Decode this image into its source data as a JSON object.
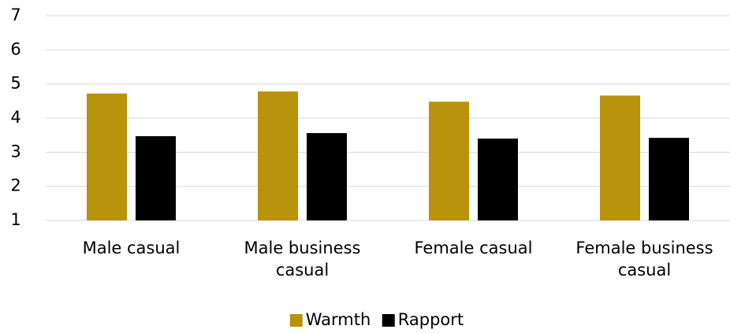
{
  "chart_data": {
    "type": "bar",
    "categories": [
      "Male casual",
      "Male business casual",
      "Female casual",
      "Female business casual"
    ],
    "series": [
      {
        "name": "Warmth",
        "color": "#b8930b",
        "values": [
          4.72,
          4.78,
          4.48,
          4.66
        ]
      },
      {
        "name": "Rapport",
        "color": "#000000",
        "values": [
          3.47,
          3.56,
          3.4,
          3.42
        ]
      }
    ],
    "ylim": [
      1,
      7
    ],
    "yticks": [
      1,
      2,
      3,
      4,
      5,
      6,
      7
    ],
    "grid": true,
    "legend": "bottom"
  }
}
